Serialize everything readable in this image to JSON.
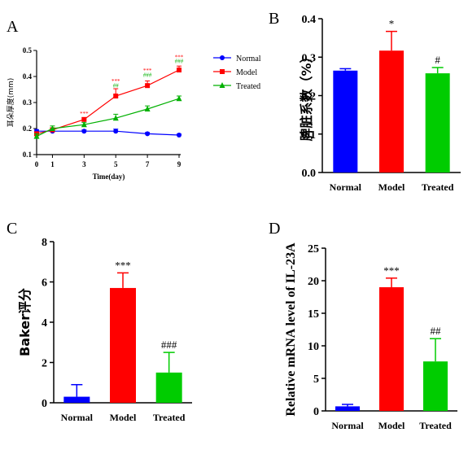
{
  "panels": {
    "A": {
      "letter": "A",
      "chart_data": {
        "type": "line",
        "x": [
          0,
          1,
          3,
          5,
          7,
          9
        ],
        "xticks": [
          "0",
          "1",
          "3",
          "5",
          "7",
          "9"
        ],
        "xlabel": "Time(day)",
        "ylabel": "耳朵厚度(mm)",
        "ylim": [
          0.1,
          0.5
        ],
        "yticks": [
          "0.1",
          "0.2",
          "0.3",
          "0.4",
          "0.5"
        ],
        "legend_position": "right",
        "series": [
          {
            "name": "Normal",
            "color": "#0000ff",
            "marker": "circle",
            "values": [
              0.19,
              0.19,
              0.19,
              0.19,
              0.18,
              0.175
            ],
            "errors": [
              0.006,
              0.006,
              0.005,
              0.008,
              0.005,
              0.004
            ]
          },
          {
            "name": "Model",
            "color": "#ff0000",
            "marker": "square",
            "values": [
              0.18,
              0.195,
              0.235,
              0.325,
              0.365,
              0.425
            ],
            "errors": [
              0.006,
              0.008,
              0.006,
              0.028,
              0.018,
              0.015
            ]
          },
          {
            "name": "Treated",
            "color": "#00b000",
            "marker": "triangle",
            "values": [
              0.17,
              0.2,
              0.215,
              0.24,
              0.275,
              0.315
            ],
            "errors": [
              0.01,
              0.01,
              0.008,
              0.015,
              0.012,
              0.01
            ]
          }
        ],
        "annotations": [
          {
            "x": 3,
            "y": 0.25,
            "text": "***",
            "color": "#ff0000"
          },
          {
            "x": 5,
            "y": 0.375,
            "text": "***",
            "color": "#ff0000"
          },
          {
            "x": 5,
            "y": 0.358,
            "text": "##",
            "color": "#00b000"
          },
          {
            "x": 7,
            "y": 0.415,
            "text": "***",
            "color": "#ff0000"
          },
          {
            "x": 7,
            "y": 0.398,
            "text": "###",
            "color": "#00b000"
          },
          {
            "x": 9,
            "y": 0.467,
            "text": "***",
            "color": "#ff0000"
          },
          {
            "x": 9,
            "y": 0.452,
            "text": "###",
            "color": "#00b000"
          }
        ]
      }
    },
    "B": {
      "letter": "B",
      "chart_data": {
        "type": "bar",
        "categories": [
          "Normal",
          "Model",
          "Treated"
        ],
        "colors": [
          "#0000ff",
          "#ff0000",
          "#00cc00"
        ],
        "values": [
          0.265,
          0.317,
          0.258
        ],
        "errors": [
          0.005,
          0.05,
          0.015
        ],
        "ylabel": "脾脏系数（%）",
        "ylim": [
          0,
          0.4
        ],
        "yticks": [
          "0.0",
          "0.1",
          "0.2",
          "0.3",
          "0.4"
        ],
        "annotations": [
          {
            "index": 1,
            "text": "*"
          },
          {
            "index": 2,
            "text": "#"
          }
        ]
      }
    },
    "C": {
      "letter": "C",
      "chart_data": {
        "type": "bar",
        "categories": [
          "Normal",
          "Model",
          "Treated"
        ],
        "colors": [
          "#0000ff",
          "#ff0000",
          "#00cc00"
        ],
        "values": [
          0.3,
          5.7,
          1.5
        ],
        "errors": [
          0.6,
          0.75,
          1.0
        ],
        "ylabel": "Baker评分",
        "ylim": [
          0,
          8
        ],
        "yticks": [
          "0",
          "2",
          "4",
          "6",
          "8"
        ],
        "annotations": [
          {
            "index": 1,
            "text": "***"
          },
          {
            "index": 2,
            "text": "###"
          }
        ]
      }
    },
    "D": {
      "letter": "D",
      "chart_data": {
        "type": "bar",
        "categories": [
          "Normal",
          "Model",
          "Treated"
        ],
        "colors": [
          "#0000ff",
          "#ff0000",
          "#00cc00"
        ],
        "values": [
          0.7,
          19.0,
          7.6
        ],
        "errors": [
          0.3,
          1.4,
          3.5
        ],
        "ylabel": "Relative mRNA level of IL-23A",
        "ylim": [
          0,
          25
        ],
        "yticks": [
          "0",
          "5",
          "10",
          "15",
          "20",
          "25"
        ],
        "annotations": [
          {
            "index": 1,
            "text": "***"
          },
          {
            "index": 2,
            "text": "##"
          }
        ]
      }
    }
  }
}
